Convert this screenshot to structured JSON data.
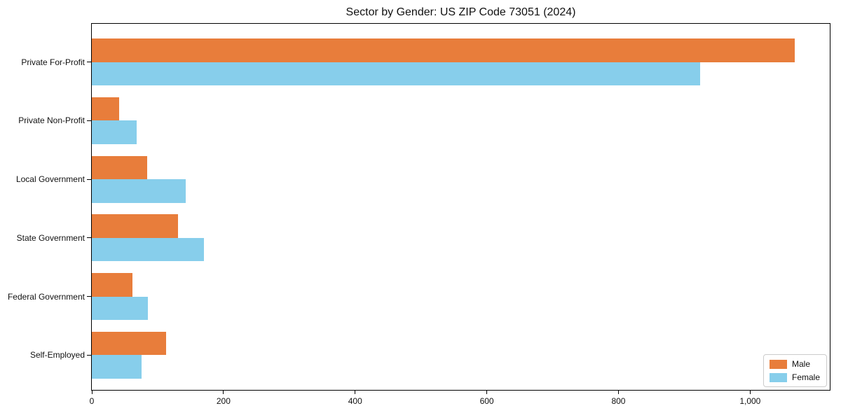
{
  "chart_data": {
    "type": "bar",
    "orientation": "horizontal",
    "title": "Sector by Gender: US ZIP Code 73051 (2024)",
    "xlabel": "",
    "ylabel": "",
    "categories": [
      "Private For-Profit",
      "Private Non-Profit",
      "Local Government",
      "State Government",
      "Federal Government",
      "Self-Employed"
    ],
    "series": [
      {
        "name": "Male",
        "color": "#e87d3b",
        "values": [
          1068,
          42,
          84,
          131,
          62,
          113
        ]
      },
      {
        "name": "Female",
        "color": "#87ceeb",
        "values": [
          924,
          68,
          143,
          170,
          85,
          76
        ]
      }
    ],
    "xlim": [
      0,
      1121
    ],
    "xticks": [
      0,
      200,
      400,
      600,
      800,
      1000
    ],
    "xtick_labels": [
      "0",
      "200",
      "400",
      "600",
      "800",
      "1,000"
    ],
    "grid": false,
    "legend_position": "lower right"
  },
  "colors": {
    "male": "#e87d3b",
    "female": "#87ceeb",
    "spine": "#000000",
    "background": "#ffffff"
  }
}
